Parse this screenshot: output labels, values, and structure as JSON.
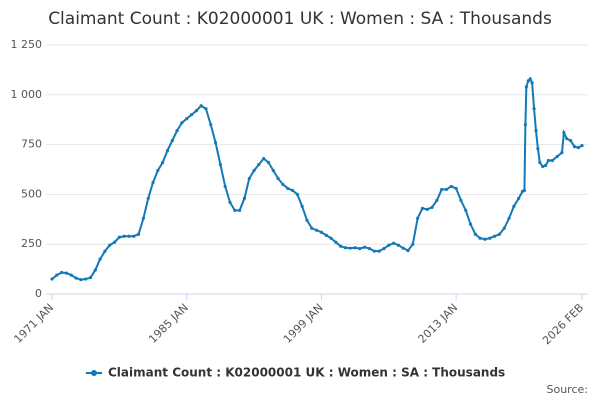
{
  "chart_data": {
    "type": "line",
    "title": "Claimant Count : K02000001 UK : Women : SA : Thousands",
    "source": "Source:",
    "x": [
      1971.0,
      1971.5,
      1972.0,
      1972.5,
      1973.0,
      1973.5,
      1974.0,
      1974.5,
      1975.0,
      1975.5,
      1976.0,
      1976.5,
      1977.0,
      1977.5,
      1978.0,
      1978.5,
      1979.0,
      1979.5,
      1980.0,
      1980.5,
      1981.0,
      1981.5,
      1982.0,
      1982.5,
      1983.0,
      1983.5,
      1984.0,
      1984.5,
      1985.0,
      1985.5,
      1986.0,
      1986.5,
      1987.0,
      1987.5,
      1988.0,
      1988.5,
      1989.0,
      1989.5,
      1990.0,
      1990.5,
      1991.0,
      1991.5,
      1992.0,
      1992.5,
      1993.0,
      1993.5,
      1994.0,
      1994.5,
      1995.0,
      1995.5,
      1996.0,
      1996.5,
      1997.0,
      1997.5,
      1998.0,
      1998.5,
      1999.0,
      1999.5,
      2000.0,
      2000.5,
      2001.0,
      2001.5,
      2002.0,
      2002.5,
      2003.0,
      2003.5,
      2004.0,
      2004.5,
      2005.0,
      2005.5,
      2006.0,
      2006.5,
      2007.0,
      2007.5,
      2008.0,
      2008.5,
      2009.0,
      2009.5,
      2010.0,
      2010.5,
      2011.0,
      2011.5,
      2012.0,
      2012.5,
      2013.0,
      2013.5,
      2014.0,
      2014.5,
      2015.0,
      2015.5,
      2016.0,
      2016.5,
      2017.0,
      2017.5,
      2018.0,
      2018.5,
      2019.0,
      2019.5,
      2019.9,
      2020.1,
      2020.2,
      2020.3,
      2020.5,
      2020.7,
      2020.9,
      2021.1,
      2021.3,
      2021.5,
      2021.7,
      2022.0,
      2022.3,
      2022.6,
      2023.0,
      2023.5,
      2024.0,
      2024.2,
      2024.5,
      2024.9,
      2025.3,
      2025.7,
      2026.083
    ],
    "series": [
      {
        "name": "Claimant Count : K02000001 UK : Women : SA : Thousands",
        "color": "#1479b8",
        "values": [
          75,
          95,
          108,
          105,
          95,
          80,
          72,
          75,
          82,
          120,
          175,
          215,
          245,
          260,
          285,
          290,
          290,
          290,
          300,
          380,
          480,
          560,
          620,
          660,
          720,
          770,
          820,
          860,
          880,
          900,
          920,
          945,
          930,
          850,
          760,
          650,
          540,
          460,
          420,
          420,
          480,
          580,
          620,
          650,
          680,
          660,
          620,
          580,
          550,
          530,
          520,
          500,
          440,
          370,
          330,
          320,
          310,
          295,
          280,
          260,
          240,
          232,
          230,
          232,
          228,
          235,
          228,
          215,
          215,
          228,
          245,
          255,
          245,
          230,
          218,
          250,
          380,
          430,
          425,
          435,
          470,
          525,
          525,
          540,
          530,
          470,
          420,
          350,
          300,
          280,
          275,
          280,
          290,
          300,
          330,
          380,
          440,
          480,
          515,
          520,
          850,
          1040,
          1070,
          1080,
          1060,
          930,
          820,
          730,
          660,
          640,
          645,
          670,
          670,
          690,
          710,
          810,
          780,
          770,
          740,
          735,
          745
        ]
      }
    ],
    "xlim": [
      1971,
      2026.083
    ],
    "xticks": [
      {
        "value": 1971,
        "label": "1971 JAN"
      },
      {
        "value": 1985,
        "label": "1985 JAN"
      },
      {
        "value": 1999,
        "label": "1999 JAN"
      },
      {
        "value": 2013,
        "label": "2013 JAN"
      },
      {
        "value": 2026.083,
        "label": "2026 FEB"
      }
    ],
    "ylim": [
      0,
      1250
    ],
    "yticks": [
      0,
      250,
      500,
      750,
      {
        "value": 1000,
        "label": "1 000"
      },
      {
        "value": 1250,
        "label": "1 250"
      }
    ],
    "grid": true
  }
}
